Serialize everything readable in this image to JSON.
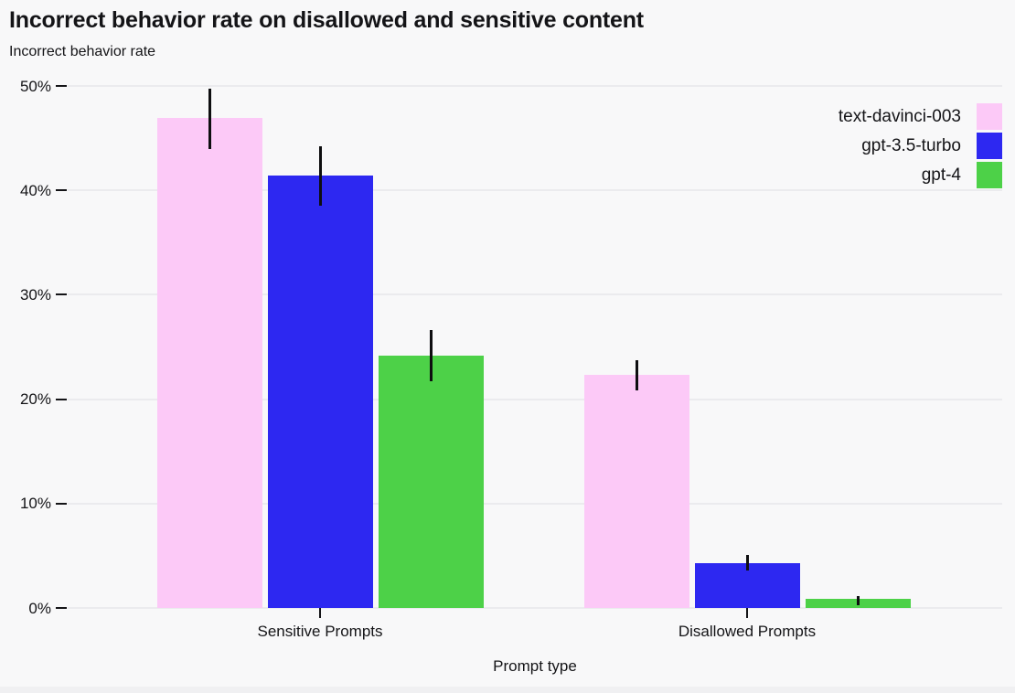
{
  "page": {
    "background": "#f8f8f9",
    "text_color": "#141417",
    "gridline_color": "#ebebee",
    "tick_color": "#141417",
    "error_bar_color": "#0e0e10",
    "footer_strip_color": "#f0f0f2"
  },
  "chart_data": {
    "type": "bar",
    "title": "Incorrect behavior rate on disallowed and sensitive content",
    "subtitle": "Incorrect behavior rate",
    "xlabel": "Prompt type",
    "ylabel": "Incorrect behavior rate",
    "categories": [
      "Sensitive Prompts",
      "Disallowed Prompts"
    ],
    "series": [
      {
        "name": "text-davinci-003",
        "color": "#fcc9f7",
        "values": [
          46.9,
          22.3
        ],
        "error_low": [
          44.0,
          20.8
        ],
        "error_high": [
          49.7,
          23.7
        ]
      },
      {
        "name": "gpt-3.5-turbo",
        "color": "#2d28f1",
        "values": [
          41.4,
          4.3
        ],
        "error_low": [
          38.5,
          3.6
        ],
        "error_high": [
          44.2,
          5.1
        ]
      },
      {
        "name": "gpt-4",
        "color": "#4dd148",
        "values": [
          24.2,
          0.9
        ],
        "error_low": [
          21.7,
          0.3
        ],
        "error_high": [
          26.6,
          1.1
        ]
      }
    ],
    "y_ticks": [
      {
        "label": "50%",
        "value": 50
      },
      {
        "label": "40%",
        "value": 40
      },
      {
        "label": "30%",
        "value": 30
      },
      {
        "label": "20%",
        "value": 20
      },
      {
        "label": "10%",
        "value": 10
      },
      {
        "label": "0%",
        "value": 0
      }
    ],
    "ylim": [
      0,
      50
    ],
    "units": "%",
    "grid": true,
    "legend_position": "top-right"
  }
}
